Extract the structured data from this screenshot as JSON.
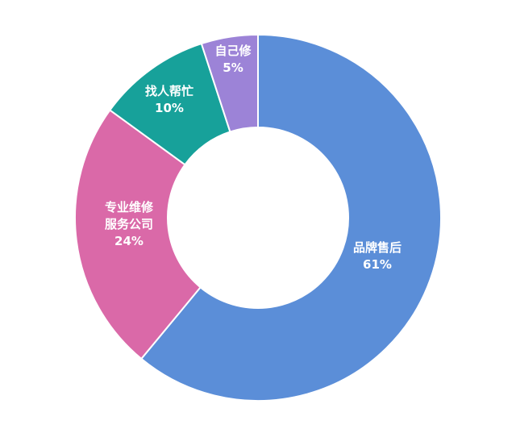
{
  "chart_data": {
    "type": "pie",
    "donut": true,
    "start": "top, clockwise",
    "slices": [
      {
        "label": [
          "品牌售后"
        ],
        "value": 61,
        "value_label": "61%",
        "color": "#5b8ed8"
      },
      {
        "label": [
          "专业维修",
          "服务公司"
        ],
        "value": 24,
        "value_label": "24%",
        "color": "#da69a8"
      },
      {
        "label": [
          "找人帮忙"
        ],
        "value": 10,
        "value_label": "10%",
        "color": "#17a19a"
      },
      {
        "label": [
          "自己修"
        ],
        "value": 5,
        "value_label": "5%",
        "color": "#9c83d7"
      }
    ]
  }
}
